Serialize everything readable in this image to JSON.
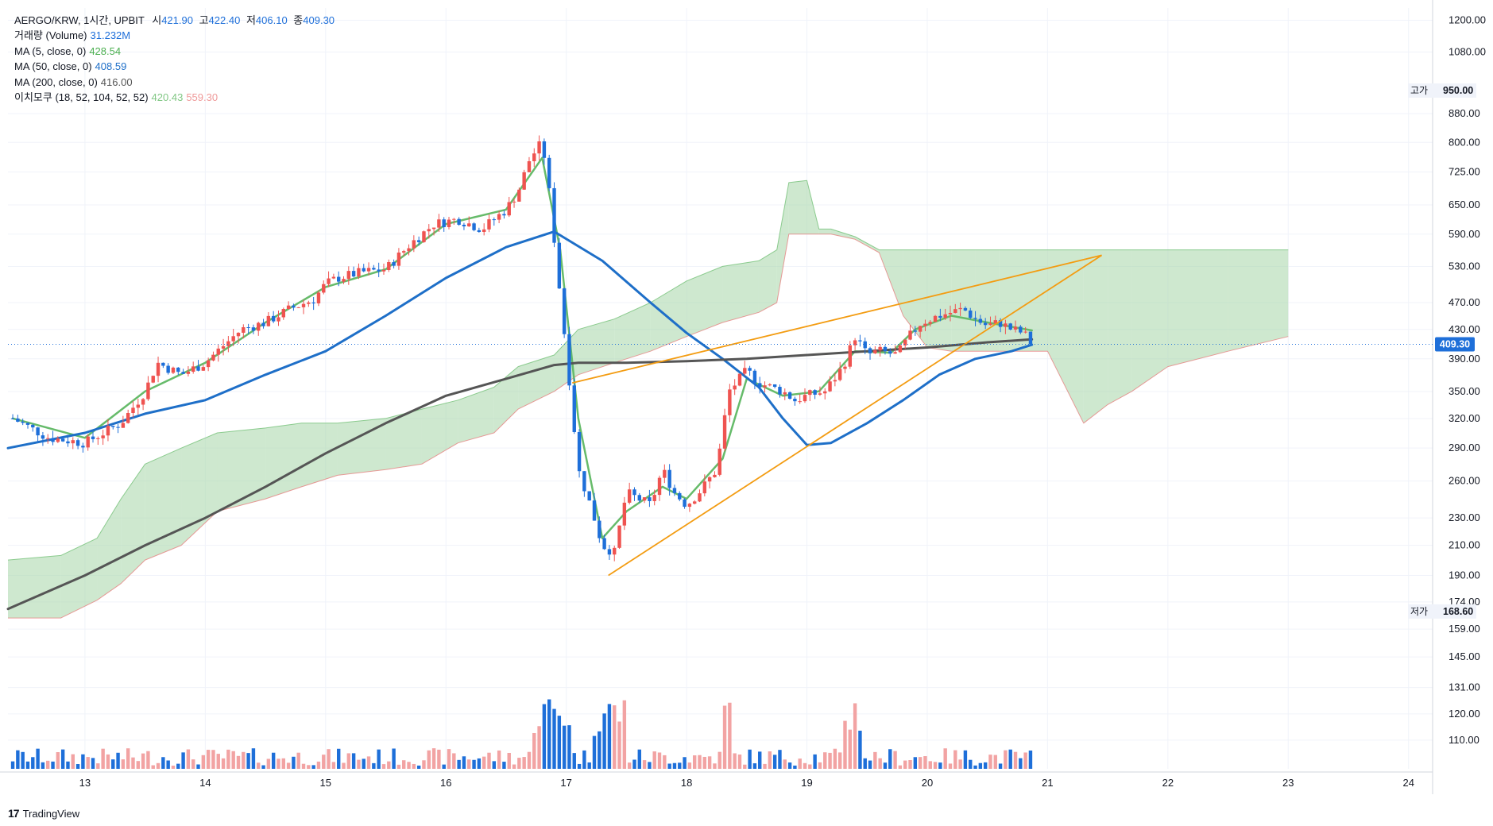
{
  "legend": {
    "symbol": "AERGO/KRW, 1시간, UPBIT",
    "open_label": "시",
    "open": "421.90",
    "high_label": "고",
    "high": "422.40",
    "low_label": "저",
    "low": "406.10",
    "close_label": "종",
    "close": "409.30",
    "volume_label": "거래량 (Volume)",
    "volume": "31.232M",
    "ma5_label": "MA (5, close, 0)",
    "ma5": "428.54",
    "ma50_label": "MA (50, close, 0)",
    "ma50": "408.59",
    "ma200_label": "MA (200, close, 0)",
    "ma200": "416.00",
    "ichimoku_label": "이치모쿠 (18, 52, 104, 52, 52)",
    "ichimoku_a": "420.43",
    "ichimoku_b": "559.30"
  },
  "price_labels": {
    "high_tag": "고가",
    "high_value": "950.00",
    "low_tag": "저가",
    "low_value": "168.60",
    "last_value": "409.30"
  },
  "branding": {
    "logo": "17",
    "name": "TradingView"
  },
  "colors": {
    "up": "#ef5350",
    "down": "#1e6fd9",
    "volume_up": "#f2a3a3",
    "volume_down": "#1e6fd9",
    "ma5": "#66bb6a",
    "ma50": "#1e6fc8",
    "ma200": "#555555",
    "cloud_green": "#a5d6a7",
    "cloud_red": "#f8bbbb",
    "trendline": "#f39c12",
    "last_price_bg": "#1e6fd9",
    "axis_text": "#131722"
  },
  "chart_data": {
    "type": "candlestick",
    "scale": "log",
    "xlabel": "",
    "ylabel": "",
    "x_ticks": [
      "13",
      "14",
      "15",
      "16",
      "17",
      "18",
      "19",
      "20",
      "21",
      "22",
      "23",
      "24"
    ],
    "y_ticks": [
      1200,
      1080,
      880,
      800,
      725,
      650,
      590,
      530,
      470,
      430,
      390,
      350,
      320,
      290,
      260,
      230,
      210,
      190,
      174,
      159,
      145,
      131,
      120,
      110
    ],
    "y_tick_labels": [
      "1200.00",
      "1080.00",
      "880.00",
      "800.00",
      "725.00",
      "650.00",
      "590.00",
      "530.00",
      "470.00",
      "430.00",
      "390.00",
      "350.00",
      "320.00",
      "290.00",
      "260.00",
      "230.00",
      "210.00",
      "190.00",
      "174.00",
      "159.00",
      "145.00",
      "131.00",
      "120.00",
      "110.00"
    ],
    "ylim": [
      100,
      1250
    ],
    "xlim_days": [
      12.36,
      24.2
    ],
    "last_price": 409.3,
    "session_high": 950,
    "session_low": 168.6,
    "price_path": [
      [
        12.4,
        320
      ],
      [
        12.7,
        300
      ],
      [
        13.0,
        295
      ],
      [
        13.3,
        315
      ],
      [
        13.5,
        350
      ],
      [
        13.6,
        385
      ],
      [
        13.8,
        370
      ],
      [
        14.0,
        385
      ],
      [
        14.1,
        400
      ],
      [
        14.3,
        430
      ],
      [
        14.5,
        440
      ],
      [
        14.7,
        460
      ],
      [
        14.9,
        475
      ],
      [
        15.0,
        500
      ],
      [
        15.1,
        510
      ],
      [
        15.3,
        520
      ],
      [
        15.5,
        525
      ],
      [
        15.7,
        570
      ],
      [
        15.9,
        610
      ],
      [
        16.1,
        620
      ],
      [
        16.3,
        600
      ],
      [
        16.5,
        640
      ],
      [
        16.6,
        680
      ],
      [
        16.7,
        760
      ],
      [
        16.8,
        800
      ],
      [
        16.85,
        700
      ],
      [
        16.9,
        580
      ],
      [
        16.95,
        480
      ],
      [
        17.0,
        400
      ],
      [
        17.05,
        330
      ],
      [
        17.1,
        270
      ],
      [
        17.2,
        240
      ],
      [
        17.3,
        210
      ],
      [
        17.4,
        205
      ],
      [
        17.5,
        250
      ],
      [
        17.6,
        245
      ],
      [
        17.7,
        240
      ],
      [
        17.8,
        270
      ],
      [
        17.9,
        250
      ],
      [
        18.0,
        240
      ],
      [
        18.1,
        250
      ],
      [
        18.25,
        270
      ],
      [
        18.35,
        350
      ],
      [
        18.5,
        375
      ],
      [
        18.6,
        360
      ],
      [
        18.8,
        350
      ],
      [
        18.9,
        340
      ],
      [
        19.0,
        345
      ],
      [
        19.15,
        350
      ],
      [
        19.3,
        380
      ],
      [
        19.4,
        420
      ],
      [
        19.5,
        395
      ],
      [
        19.6,
        400
      ],
      [
        19.75,
        395
      ],
      [
        19.85,
        420
      ],
      [
        19.95,
        440
      ],
      [
        20.1,
        450
      ],
      [
        20.3,
        460
      ],
      [
        20.4,
        445
      ],
      [
        20.5,
        435
      ],
      [
        20.6,
        440
      ],
      [
        20.7,
        430
      ],
      [
        20.8,
        425
      ],
      [
        20.87,
        409.3
      ]
    ],
    "series": [
      {
        "name": "MA (5, close, 0)",
        "points": [
          [
            12.4,
            320
          ],
          [
            13.0,
            300
          ],
          [
            13.5,
            350
          ],
          [
            14.0,
            385
          ],
          [
            14.5,
            440
          ],
          [
            15.0,
            495
          ],
          [
            15.5,
            525
          ],
          [
            16.0,
            610
          ],
          [
            16.5,
            640
          ],
          [
            16.8,
            760
          ],
          [
            16.95,
            560
          ],
          [
            17.1,
            320
          ],
          [
            17.3,
            215
          ],
          [
            17.5,
            235
          ],
          [
            17.8,
            255
          ],
          [
            18.0,
            245
          ],
          [
            18.3,
            280
          ],
          [
            18.5,
            365
          ],
          [
            18.8,
            345
          ],
          [
            19.1,
            350
          ],
          [
            19.4,
            400
          ],
          [
            19.7,
            398
          ],
          [
            19.9,
            430
          ],
          [
            20.2,
            450
          ],
          [
            20.5,
            440
          ],
          [
            20.87,
            428.54
          ]
        ]
      },
      {
        "name": "MA (50, close, 0)",
        "points": [
          [
            12.36,
            290
          ],
          [
            13.0,
            305
          ],
          [
            13.5,
            325
          ],
          [
            14.0,
            340
          ],
          [
            14.5,
            370
          ],
          [
            15.0,
            400
          ],
          [
            15.5,
            450
          ],
          [
            16.0,
            510
          ],
          [
            16.5,
            565
          ],
          [
            16.9,
            595
          ],
          [
            17.3,
            540
          ],
          [
            17.7,
            470
          ],
          [
            18.0,
            425
          ],
          [
            18.3,
            390
          ],
          [
            18.6,
            355
          ],
          [
            18.8,
            320
          ],
          [
            19.0,
            293
          ],
          [
            19.2,
            295
          ],
          [
            19.5,
            315
          ],
          [
            19.8,
            340
          ],
          [
            20.1,
            370
          ],
          [
            20.4,
            390
          ],
          [
            20.7,
            400
          ],
          [
            20.87,
            408.59
          ]
        ]
      },
      {
        "name": "MA (200, close, 0)",
        "points": [
          [
            12.36,
            170
          ],
          [
            13.0,
            190
          ],
          [
            13.5,
            210
          ],
          [
            14.0,
            230
          ],
          [
            14.5,
            255
          ],
          [
            15.0,
            285
          ],
          [
            15.5,
            315
          ],
          [
            16.0,
            345
          ],
          [
            16.5,
            365
          ],
          [
            16.9,
            382
          ],
          [
            17.1,
            385
          ],
          [
            17.5,
            385
          ],
          [
            18.0,
            387
          ],
          [
            18.5,
            390
          ],
          [
            19.0,
            395
          ],
          [
            19.5,
            400
          ],
          [
            20.0,
            405
          ],
          [
            20.5,
            412
          ],
          [
            20.87,
            416.0
          ]
        ]
      }
    ],
    "ichimoku": {
      "span_a": [
        [
          12.36,
          200
        ],
        [
          12.8,
          203
        ],
        [
          13.1,
          215
        ],
        [
          13.3,
          245
        ],
        [
          13.5,
          275
        ],
        [
          13.8,
          290
        ],
        [
          14.1,
          305
        ],
        [
          14.5,
          310
        ],
        [
          14.8,
          315
        ],
        [
          15.1,
          315
        ],
        [
          15.5,
          320
        ],
        [
          15.8,
          330
        ],
        [
          16.1,
          340
        ],
        [
          16.4,
          355
        ],
        [
          16.6,
          380
        ],
        [
          16.9,
          395
        ],
        [
          17.1,
          430
        ],
        [
          17.4,
          445
        ],
        [
          17.7,
          470
        ],
        [
          18.0,
          505
        ],
        [
          18.3,
          530
        ],
        [
          18.6,
          540
        ],
        [
          18.75,
          560
        ],
        [
          18.85,
          700
        ],
        [
          19.0,
          705
        ],
        [
          19.1,
          600
        ],
        [
          19.2,
          600
        ],
        [
          19.4,
          585
        ],
        [
          19.6,
          560
        ],
        [
          19.8,
          560
        ],
        [
          20.0,
          560
        ],
        [
          20.2,
          560
        ],
        [
          20.4,
          560
        ],
        [
          20.6,
          560
        ],
        [
          20.8,
          560
        ],
        [
          21.0,
          560
        ],
        [
          21.3,
          560
        ],
        [
          21.5,
          560
        ],
        [
          21.7,
          560
        ],
        [
          22.0,
          560
        ],
        [
          22.5,
          560
        ],
        [
          23.0,
          560
        ]
      ],
      "span_b": [
        [
          12.36,
          165
        ],
        [
          12.8,
          165
        ],
        [
          13.1,
          175
        ],
        [
          13.3,
          185
        ],
        [
          13.5,
          200
        ],
        [
          13.8,
          210
        ],
        [
          14.1,
          235
        ],
        [
          14.5,
          245
        ],
        [
          14.8,
          255
        ],
        [
          15.1,
          265
        ],
        [
          15.5,
          270
        ],
        [
          15.8,
          275
        ],
        [
          16.1,
          295
        ],
        [
          16.4,
          305
        ],
        [
          16.6,
          330
        ],
        [
          16.9,
          350
        ],
        [
          17.1,
          370
        ],
        [
          17.4,
          385
        ],
        [
          17.7,
          400
        ],
        [
          18.0,
          420
        ],
        [
          18.3,
          440
        ],
        [
          18.6,
          455
        ],
        [
          18.75,
          470
        ],
        [
          18.85,
          590
        ],
        [
          19.0,
          590
        ],
        [
          19.1,
          590
        ],
        [
          19.2,
          590
        ],
        [
          19.4,
          580
        ],
        [
          19.6,
          555
        ],
        [
          19.8,
          450
        ],
        [
          20.0,
          405
        ],
        [
          20.2,
          400
        ],
        [
          20.4,
          400
        ],
        [
          20.6,
          400
        ],
        [
          20.8,
          400
        ],
        [
          21.0,
          400
        ],
        [
          21.3,
          315
        ],
        [
          21.5,
          335
        ],
        [
          21.7,
          350
        ],
        [
          22.0,
          380
        ],
        [
          22.5,
          400
        ],
        [
          23.0,
          420
        ]
      ]
    },
    "trendlines": [
      {
        "from": [
          17.35,
          190
        ],
        "to": [
          21.45,
          550
        ]
      },
      {
        "from": [
          17.05,
          360
        ],
        "to": [
          21.45,
          550
        ]
      }
    ]
  }
}
